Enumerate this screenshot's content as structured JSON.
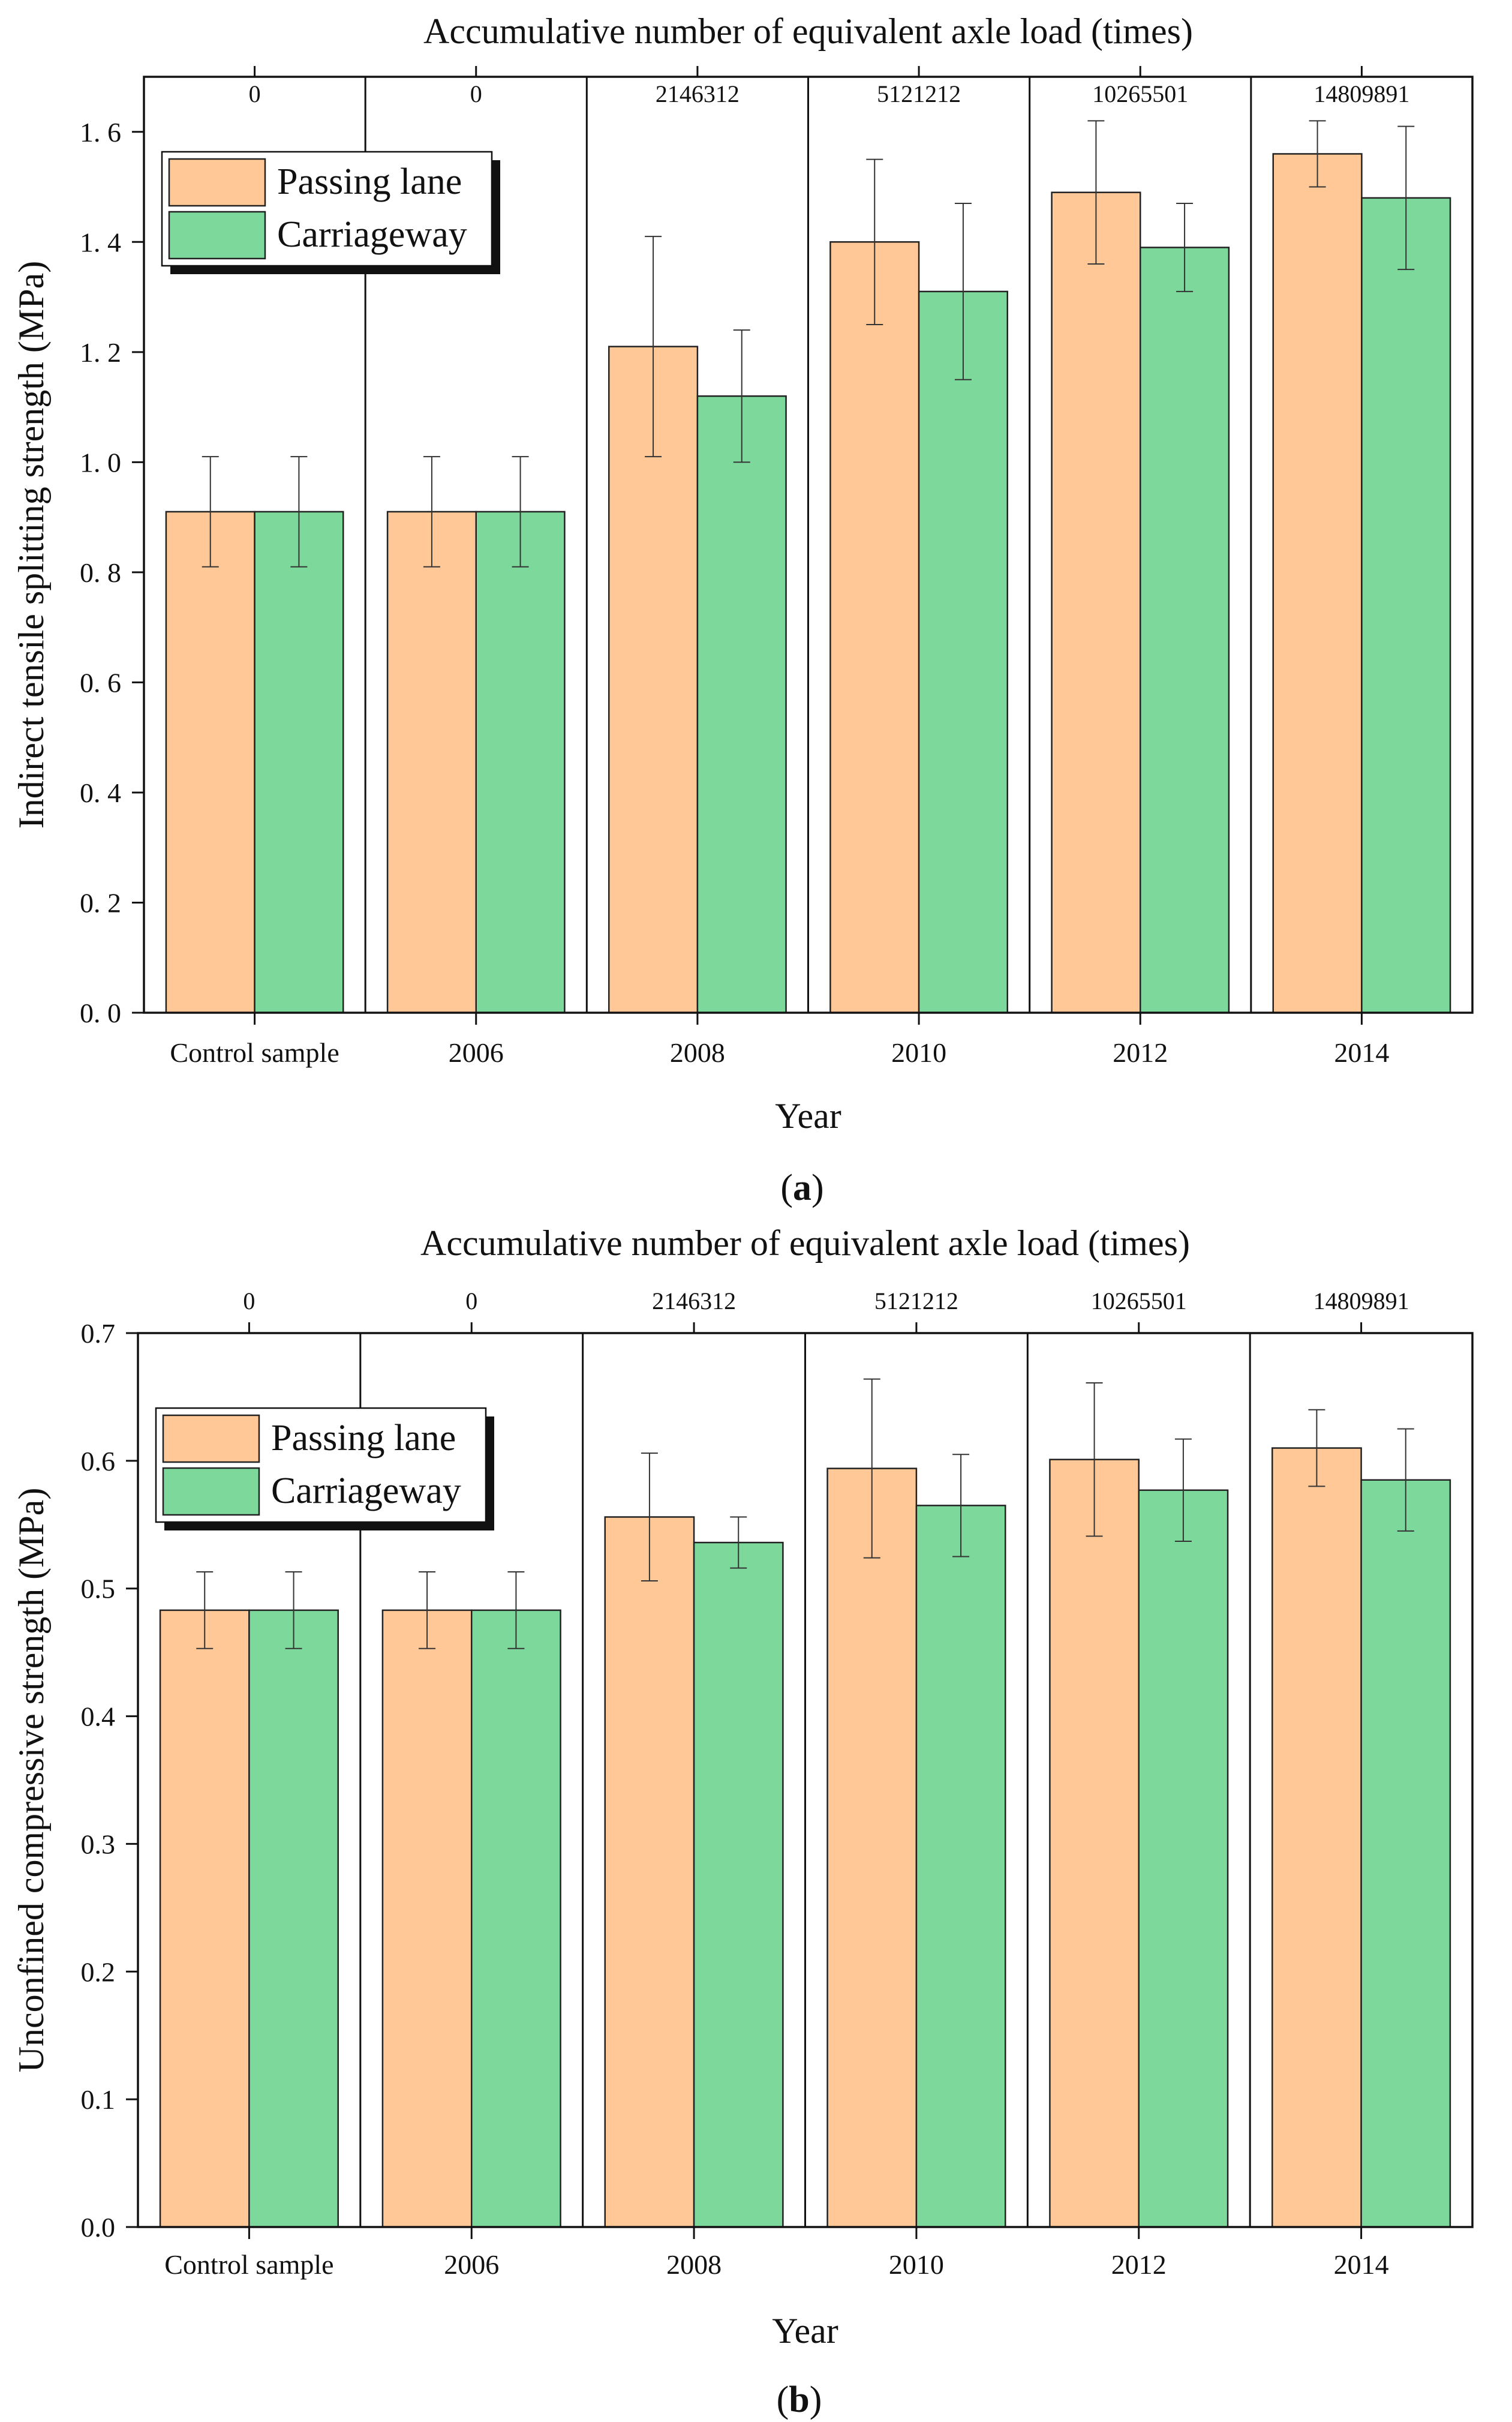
{
  "figure": {
    "panels": [
      "a",
      "b"
    ]
  },
  "colors": {
    "passing_lane": "#ffc896",
    "carriageway": "#7dd89c",
    "axis": "#111111",
    "background": "#ffffff"
  },
  "chart_data": [
    {
      "type": "bar",
      "panel_label": "a",
      "title": "Accumulative number of equivalent axle load (times)",
      "xlabel": "Year",
      "ylabel": "Indirect tensile splitting strength (MPa)",
      "categories": [
        "Control sample",
        "2006",
        "2008",
        "2010",
        "2012",
        "2014"
      ],
      "top_axis_labels": [
        "0",
        "0",
        "2146312",
        "5121212",
        "10265501",
        "14809891"
      ],
      "ylim": [
        0,
        1.7
      ],
      "yticks": [
        0.0,
        0.2,
        0.4,
        0.6,
        0.8,
        1.0,
        1.2,
        1.4,
        1.6
      ],
      "ytick_labels": [
        "0. 0",
        "0. 2",
        "0. 4",
        "0. 6",
        "0. 8",
        "1. 0",
        "1. 2",
        "1. 4",
        "1. 6"
      ],
      "legend_position": "top-left",
      "series": [
        {
          "name": "Passing lane",
          "values": [
            0.91,
            0.91,
            1.21,
            1.4,
            1.49,
            1.56
          ],
          "error": [
            0.1,
            0.1,
            0.2,
            0.15,
            0.13,
            0.06
          ]
        },
        {
          "name": "Carriageway",
          "values": [
            0.91,
            0.91,
            1.12,
            1.31,
            1.39,
            1.48
          ],
          "error": [
            0.1,
            0.1,
            0.12,
            0.16,
            0.08,
            0.13
          ]
        }
      ]
    },
    {
      "type": "bar",
      "panel_label": "b",
      "title": "Accumulative number of equivalent axle load (times)",
      "xlabel": "Year",
      "ylabel": "Unconfined compressive strength (MPa)",
      "categories": [
        "Control sample",
        "2006",
        "2008",
        "2010",
        "2012",
        "2014"
      ],
      "top_axis_labels": [
        "0",
        "0",
        "2146312",
        "5121212",
        "10265501",
        "14809891"
      ],
      "ylim": [
        0,
        0.7
      ],
      "yticks": [
        0.0,
        0.1,
        0.2,
        0.3,
        0.4,
        0.5,
        0.6,
        0.7
      ],
      "ytick_labels": [
        "0.0",
        "0.1",
        "0.2",
        "0.3",
        "0.4",
        "0.5",
        "0.6",
        "0.7"
      ],
      "legend_position": "top-left",
      "series": [
        {
          "name": "Passing lane",
          "values": [
            0.483,
            0.483,
            0.556,
            0.594,
            0.601,
            0.61
          ],
          "error": [
            0.03,
            0.03,
            0.05,
            0.07,
            0.06,
            0.03
          ]
        },
        {
          "name": "Carriageway",
          "values": [
            0.483,
            0.483,
            0.536,
            0.565,
            0.577,
            0.585
          ],
          "error": [
            0.03,
            0.03,
            0.02,
            0.04,
            0.04,
            0.04
          ]
        }
      ]
    }
  ]
}
